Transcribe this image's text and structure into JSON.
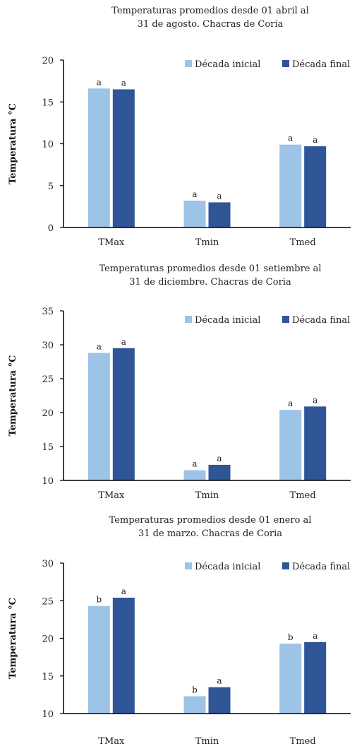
{
  "colors": {
    "inicial": "#9dc3e6",
    "final": "#2f5597",
    "axis": "#000000"
  },
  "chart_data": [
    {
      "type": "bar",
      "title_lines": [
        "Temperaturas promedios desde 01 abril al",
        "31 de agosto. Chacras de Coria"
      ],
      "ylabel": "Temperatura °C",
      "ylim": [
        0,
        20
      ],
      "yticks": [
        "0",
        "5",
        "10",
        "15",
        "20"
      ],
      "categories": [
        "TMax",
        "Tmin",
        "Tmed"
      ],
      "legend_position": "top-right",
      "series": [
        {
          "name": "Década inicial",
          "color_key": "inicial",
          "values": [
            16.6,
            3.2,
            9.9
          ],
          "labels": [
            "a",
            "a",
            "a"
          ]
        },
        {
          "name": "Década final",
          "color_key": "final",
          "values": [
            16.5,
            3.0,
            9.7
          ],
          "labels": [
            "a",
            "a",
            "a"
          ]
        }
      ]
    },
    {
      "type": "bar",
      "title_lines": [
        "Temperaturas promedios desde 01 setiembre al",
        "31 de diciembre. Chacras de Coria"
      ],
      "ylabel": "Temperatura °C",
      "ylim": [
        10,
        35
      ],
      "yticks": [
        "10",
        "15",
        "20",
        "25",
        "30",
        "35"
      ],
      "categories": [
        "TMax",
        "Tmin",
        "Tmed"
      ],
      "legend_position": "top-right",
      "series": [
        {
          "name": "Década inicial",
          "color_key": "inicial",
          "values": [
            28.8,
            11.5,
            20.4
          ],
          "labels": [
            "a",
            "a",
            "a"
          ]
        },
        {
          "name": "Década final",
          "color_key": "final",
          "values": [
            29.5,
            12.3,
            20.9
          ],
          "labels": [
            "a",
            "a",
            "a"
          ]
        }
      ]
    },
    {
      "type": "bar",
      "title_lines": [
        "Temperaturas promedios desde 01 enero al",
        "31 de marzo. Chacras de Coria"
      ],
      "ylabel": "Temperatura °C",
      "ylim": [
        10,
        30
      ],
      "yticks": [
        "10",
        "15",
        "20",
        "25",
        "30"
      ],
      "categories": [
        "TMax",
        "Tmin",
        "Tmed"
      ],
      "legend_position": "top-right",
      "series": [
        {
          "name": "Década inicial",
          "color_key": "inicial",
          "values": [
            24.3,
            12.3,
            19.3
          ],
          "labels": [
            "b",
            "b",
            "b"
          ]
        },
        {
          "name": "Década final",
          "color_key": "final",
          "values": [
            25.4,
            13.5,
            19.5
          ],
          "labels": [
            "a",
            "a",
            "a"
          ]
        }
      ]
    }
  ]
}
